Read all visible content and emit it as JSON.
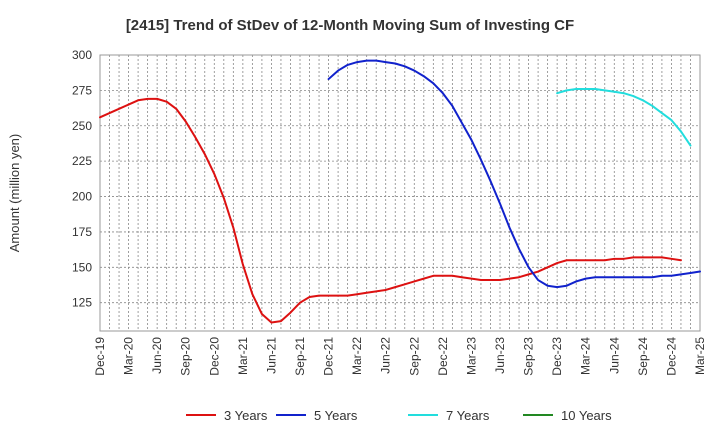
{
  "chart_data": {
    "type": "line",
    "title": "[2415]  Trend of StDev of 12-Month Moving Sum of Investing CF",
    "ylabel": "Amount (million yen)",
    "xlabel": "",
    "ylim": [
      105,
      300
    ],
    "yticks": [
      125,
      150,
      175,
      200,
      225,
      250,
      275,
      300
    ],
    "x_start": "Dec-19",
    "x_end": "Mar-25",
    "x_step_months": 1,
    "xtick_labels": [
      "Dec-19",
      "Mar-20",
      "Jun-20",
      "Sep-20",
      "Dec-20",
      "Mar-21",
      "Jun-21",
      "Sep-21",
      "Dec-21",
      "Mar-22",
      "Jun-22",
      "Sep-22",
      "Dec-22",
      "Mar-23",
      "Jun-23",
      "Sep-23",
      "Dec-23",
      "Mar-24",
      "Jun-24",
      "Sep-24",
      "Dec-24",
      "Mar-25"
    ],
    "grid": true,
    "legend_position": "bottom",
    "series": [
      {
        "name": "3 Years",
        "color": "#dd1111",
        "start": "Dec-19",
        "values": [
          256,
          259,
          262,
          265,
          268,
          269,
          269,
          267,
          262,
          253,
          242,
          230,
          216,
          199,
          178,
          152,
          131,
          117,
          111,
          112,
          118,
          125,
          129,
          130,
          130,
          130,
          130,
          131,
          132,
          133,
          134,
          136,
          138,
          140,
          142,
          144,
          144,
          144,
          143,
          142,
          141,
          141,
          141,
          142,
          143,
          145,
          147,
          150,
          153,
          155,
          155,
          155,
          155,
          155,
          156,
          156,
          157,
          157,
          157,
          157,
          156,
          155
        ]
      },
      {
        "name": "5 Years",
        "color": "#1122cc",
        "start": "Dec-21",
        "values": [
          283,
          289,
          293,
          295,
          296,
          296,
          295,
          294,
          292,
          289,
          285,
          280,
          273,
          264,
          252,
          240,
          226,
          211,
          195,
          178,
          163,
          150,
          141,
          137,
          136,
          137,
          140,
          142,
          143,
          143,
          143,
          143,
          143,
          143,
          143,
          144,
          144,
          145,
          146,
          147
        ]
      },
      {
        "name": "7 Years",
        "color": "#22dddd",
        "start": "Dec-23",
        "values": [
          273,
          275,
          276,
          276,
          276,
          275,
          274,
          273,
          271,
          268,
          264,
          259,
          254,
          246,
          236
        ]
      },
      {
        "name": "10 Years",
        "color": "#228822",
        "start": "Dec-19",
        "values": []
      }
    ]
  }
}
